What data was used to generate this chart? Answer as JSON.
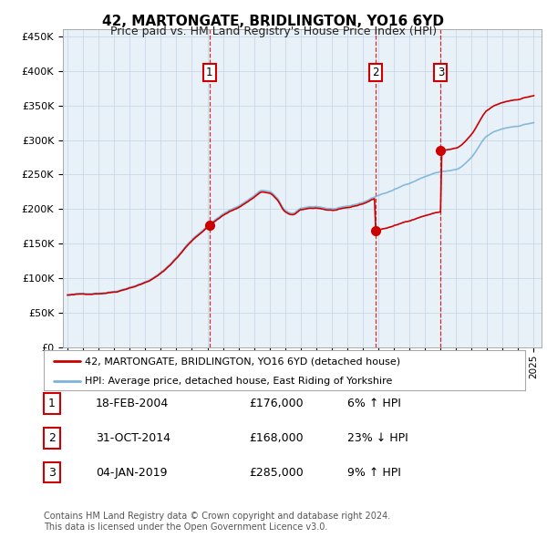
{
  "title": "42, MARTONGATE, BRIDLINGTON, YO16 6YD",
  "subtitle": "Price paid vs. HM Land Registry's House Price Index (HPI)",
  "plot_bg_color": "#e8f0f8",
  "ylim": [
    0,
    460000
  ],
  "yticks": [
    0,
    50000,
    100000,
    150000,
    200000,
    250000,
    300000,
    350000,
    400000,
    450000
  ],
  "ytick_labels": [
    "£0",
    "£50K",
    "£100K",
    "£150K",
    "£200K",
    "£250K",
    "£300K",
    "£350K",
    "£400K",
    "£450K"
  ],
  "sale_dates_num": [
    2004.12,
    2014.83,
    2019.01
  ],
  "sale_prices": [
    176000,
    168000,
    285000
  ],
  "sale_labels": [
    "1",
    "2",
    "3"
  ],
  "hpi_line_color": "#7ab4d8",
  "price_line_color": "#cc0000",
  "dashed_line_color": "#cc0000",
  "grid_color": "#c8d8e8",
  "legend_line1": "42, MARTONGATE, BRIDLINGTON, YO16 6YD (detached house)",
  "legend_line2": "HPI: Average price, detached house, East Riding of Yorkshire",
  "table_rows": [
    {
      "label": "1",
      "date": "18-FEB-2004",
      "price": "£176,000",
      "pct": "6% ↑ HPI"
    },
    {
      "label": "2",
      "date": "31-OCT-2014",
      "price": "£168,000",
      "pct": "23% ↓ HPI"
    },
    {
      "label": "3",
      "date": "04-JAN-2019",
      "price": "£285,000",
      "pct": "9% ↑ HPI"
    }
  ],
  "footer": "Contains HM Land Registry data © Crown copyright and database right 2024.\nThis data is licensed under the Open Government Licence v3.0."
}
